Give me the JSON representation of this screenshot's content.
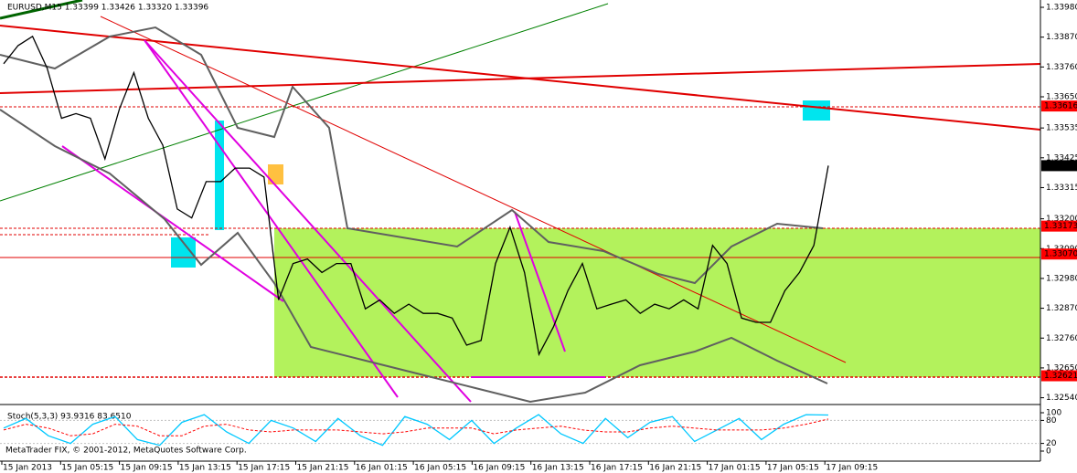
{
  "chart_data": {
    "type": "line",
    "title": "EURUSD,M15 1.33399 1.33426 1.33320 1.33396",
    "footer": "MetaTrader FIX, © 2001-2012, MetaQuotes Software Corp.",
    "x_labels": [
      "15 Jan 2013",
      "15 Jan 05:15",
      "15 Jan 09:15",
      "15 Jan 13:15",
      "15 Jan 17:15",
      "15 Jan 21:15",
      "16 Jan 01:15",
      "16 Jan 05:15",
      "16 Jan 09:15",
      "16 Jan 13:15",
      "16 Jan 17:15",
      "16 Jan 21:15",
      "17 Jan 01:15",
      "17 Jan 05:15",
      "17 Jan 09:15"
    ],
    "series": [
      {
        "name": "EURUSD",
        "color": "#000000",
        "values": [
          1.33772,
          1.33839,
          1.33873,
          1.33756,
          1.33571,
          1.33588,
          1.33571,
          1.33421,
          1.33605,
          1.33739,
          1.33571,
          1.33471,
          1.33236,
          1.33203,
          1.33337,
          1.33337,
          1.33387,
          1.33387,
          1.33354,
          1.32901,
          1.33035,
          1.33052,
          1.33002,
          1.33035,
          1.33035,
          1.32868,
          1.32901,
          1.32851,
          1.32885,
          1.32851,
          1.32851,
          1.32834,
          1.32734,
          1.32751,
          1.33035,
          1.33169,
          1.33002,
          1.327,
          1.32801,
          1.32935,
          1.33035,
          1.32868,
          1.32885,
          1.32901,
          1.32851,
          1.32885,
          1.32868,
          1.32901,
          1.32868,
          1.33102,
          1.33035,
          1.32834,
          1.32818,
          1.32818,
          1.32935,
          1.33002,
          1.33102,
          1.33396
        ]
      }
    ],
    "ylim": [
      1.32515,
      1.34007
    ],
    "yticks": [
      {
        "value": 1.3398,
        "label": "1.33980"
      },
      {
        "value": 1.3387,
        "label": "1.33870"
      },
      {
        "value": 1.3376,
        "label": "1.33760"
      },
      {
        "value": 1.3365,
        "label": "1.33650"
      },
      {
        "value": 1.33535,
        "label": "1.33535"
      },
      {
        "value": 1.33425,
        "label": "1.33425"
      },
      {
        "value": 1.33315,
        "label": "1.33315"
      },
      {
        "value": 1.332,
        "label": "1.33200"
      },
      {
        "value": 1.3309,
        "label": "1.33090"
      },
      {
        "value": 1.3298,
        "label": "1.32980"
      },
      {
        "value": 1.3287,
        "label": "1.32870"
      },
      {
        "value": 1.3276,
        "label": "1.32760"
      },
      {
        "value": 1.3265,
        "label": "1.32650"
      },
      {
        "value": 1.3254,
        "label": "1.32540"
      }
    ],
    "level_labels": [
      {
        "value": 1.33616,
        "label": "1.33616"
      },
      {
        "value": 1.33173,
        "label": "1.33173"
      },
      {
        "value": 1.3307,
        "label": "1.33070"
      },
      {
        "value": 1.32621,
        "label": "1.32621"
      }
    ],
    "level_color": "#ff0000",
    "current_price": {
      "value": 1.33396,
      "label": "1.33396"
    },
    "indicator": {
      "title": "Stoch(5,3,3) 93.9316 83.6510",
      "ylim": [
        0,
        100
      ],
      "yticks": [
        0,
        20,
        80,
        100
      ],
      "series": [
        {
          "name": "Main",
          "color": "#00c8ff",
          "values": [
            60,
            85,
            40,
            20,
            70,
            90,
            30,
            15,
            75,
            95,
            50,
            20,
            80,
            60,
            25,
            85,
            40,
            15,
            90,
            70,
            30,
            80,
            20,
            60,
            95,
            45,
            20,
            85,
            35,
            75,
            90,
            25,
            55,
            85,
            30,
            70,
            95,
            93.9316
          ]
        },
        {
          "name": "Signal",
          "color": "#ff0000",
          "values": [
            55,
            70,
            60,
            40,
            45,
            70,
            65,
            40,
            40,
            65,
            70,
            55,
            50,
            55,
            55,
            55,
            50,
            45,
            50,
            60,
            60,
            60,
            45,
            55,
            60,
            65,
            55,
            50,
            50,
            60,
            65,
            60,
            55,
            55,
            55,
            60,
            70,
            83.651
          ]
        }
      ]
    }
  }
}
